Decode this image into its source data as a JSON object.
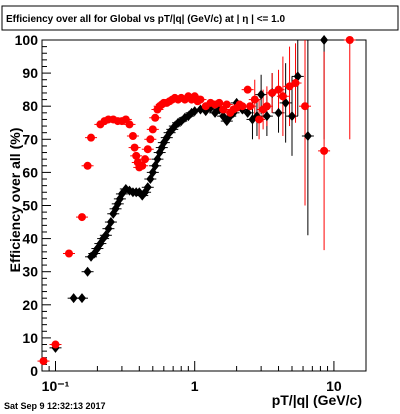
{
  "chart_data": {
    "type": "scatter",
    "title": "Efficiency over all for Global vs pT/|q| (GeV/c) at |  η | <= 1.0",
    "xlabel": "pT/|q| (GeV/c)",
    "ylabel": "Efficiency over all (%)",
    "x_scale": "log",
    "xlim": [
      0.08,
      17
    ],
    "ylim": [
      0,
      100
    ],
    "x_tick_labels": [
      "10⁻¹",
      "1",
      "10"
    ],
    "x_tick_values": [
      0.1,
      1,
      10
    ],
    "y_tick_values": [
      0,
      10,
      20,
      30,
      40,
      50,
      60,
      70,
      80,
      90,
      100
    ],
    "grid": false,
    "series": [
      {
        "color": "#000000",
        "marker": "diamond",
        "points": [
          {
            "x": 0.1,
            "y": 7
          },
          {
            "x": 0.135,
            "y": 22
          },
          {
            "x": 0.155,
            "y": 22
          },
          {
            "x": 0.17,
            "y": 30
          },
          {
            "x": 0.18,
            "y": 34.5
          },
          {
            "x": 0.19,
            "y": 35.5
          },
          {
            "x": 0.2,
            "y": 37
          },
          {
            "x": 0.21,
            "y": 38.5
          },
          {
            "x": 0.22,
            "y": 40
          },
          {
            "x": 0.23,
            "y": 41
          },
          {
            "x": 0.24,
            "y": 43
          },
          {
            "x": 0.25,
            "y": 45
          },
          {
            "x": 0.26,
            "y": 47.5
          },
          {
            "x": 0.27,
            "y": 49
          },
          {
            "x": 0.28,
            "y": 50.5
          },
          {
            "x": 0.29,
            "y": 52
          },
          {
            "x": 0.3,
            "y": 53.5
          },
          {
            "x": 0.32,
            "y": 55
          },
          {
            "x": 0.34,
            "y": 54.5
          },
          {
            "x": 0.36,
            "y": 54
          },
          {
            "x": 0.38,
            "y": 54
          },
          {
            "x": 0.4,
            "y": 54
          },
          {
            "x": 0.42,
            "y": 53
          },
          {
            "x": 0.44,
            "y": 54
          },
          {
            "x": 0.46,
            "y": 55.5
          },
          {
            "x": 0.48,
            "y": 58
          },
          {
            "x": 0.5,
            "y": 60
          },
          {
            "x": 0.52,
            "y": 62
          },
          {
            "x": 0.54,
            "y": 64
          },
          {
            "x": 0.56,
            "y": 66
          },
          {
            "x": 0.58,
            "y": 67.5
          },
          {
            "x": 0.6,
            "y": 69
          },
          {
            "x": 0.63,
            "y": 70.5
          },
          {
            "x": 0.66,
            "y": 72
          },
          {
            "x": 0.69,
            "y": 73
          },
          {
            "x": 0.72,
            "y": 74
          },
          {
            "x": 0.76,
            "y": 75
          },
          {
            "x": 0.8,
            "y": 75.5
          },
          {
            "x": 0.85,
            "y": 76.5
          },
          {
            "x": 0.9,
            "y": 77
          },
          {
            "x": 0.95,
            "y": 78
          },
          {
            "x": 1.0,
            "y": 78.5
          },
          {
            "x": 1.1,
            "y": 79
          },
          {
            "x": 1.2,
            "y": 78.5
          },
          {
            "x": 1.3,
            "y": 79.5
          },
          {
            "x": 1.4,
            "y": 78
          },
          {
            "x": 1.5,
            "y": 79
          },
          {
            "x": 1.6,
            "y": 77
          },
          {
            "x": 1.7,
            "y": 75.5
          },
          {
            "x": 1.8,
            "y": 77
          },
          {
            "x": 1.9,
            "y": 78
          },
          {
            "x": 2.0,
            "y": 81
          },
          {
            "x": 2.2,
            "y": 79
          },
          {
            "x": 2.4,
            "y": 78
          },
          {
            "x": 2.6,
            "y": 76
          },
          {
            "x": 2.8,
            "y": 77
          },
          {
            "x": 3.0,
            "y": 83.5
          },
          {
            "x": 3.3,
            "y": 77
          },
          {
            "x": 3.6,
            "y": 84
          },
          {
            "x": 4.0,
            "y": 78
          },
          {
            "x": 4.5,
            "y": 81
          },
          {
            "x": 5.0,
            "y": 77
          },
          {
            "x": 5.5,
            "y": 89
          },
          {
            "x": 6.5,
            "y": 71
          },
          {
            "x": 8.5,
            "y": 100
          }
        ]
      },
      {
        "color": "#ff0000",
        "marker": "circle",
        "points": [
          {
            "x": 0.082,
            "y": 3
          },
          {
            "x": 0.1,
            "y": 8
          },
          {
            "x": 0.125,
            "y": 35.5
          },
          {
            "x": 0.155,
            "y": 46.5
          },
          {
            "x": 0.17,
            "y": 62
          },
          {
            "x": 0.18,
            "y": 70.5
          },
          {
            "x": 0.21,
            "y": 74.5
          },
          {
            "x": 0.225,
            "y": 75.5
          },
          {
            "x": 0.24,
            "y": 76
          },
          {
            "x": 0.26,
            "y": 76
          },
          {
            "x": 0.28,
            "y": 75.5
          },
          {
            "x": 0.3,
            "y": 75.5
          },
          {
            "x": 0.32,
            "y": 76
          },
          {
            "x": 0.34,
            "y": 74.5
          },
          {
            "x": 0.36,
            "y": 71
          },
          {
            "x": 0.37,
            "y": 67.5
          },
          {
            "x": 0.38,
            "y": 65
          },
          {
            "x": 0.39,
            "y": 63
          },
          {
            "x": 0.4,
            "y": 61.5
          },
          {
            "x": 0.42,
            "y": 62
          },
          {
            "x": 0.44,
            "y": 64
          },
          {
            "x": 0.46,
            "y": 67
          },
          {
            "x": 0.48,
            "y": 70
          },
          {
            "x": 0.5,
            "y": 73
          },
          {
            "x": 0.52,
            "y": 76.5
          },
          {
            "x": 0.54,
            "y": 79
          },
          {
            "x": 0.56,
            "y": 80
          },
          {
            "x": 0.58,
            "y": 80.5
          },
          {
            "x": 0.6,
            "y": 81
          },
          {
            "x": 0.63,
            "y": 81
          },
          {
            "x": 0.66,
            "y": 81.5
          },
          {
            "x": 0.69,
            "y": 82
          },
          {
            "x": 0.72,
            "y": 82.5
          },
          {
            "x": 0.76,
            "y": 82
          },
          {
            "x": 0.8,
            "y": 82.5
          },
          {
            "x": 0.85,
            "y": 82
          },
          {
            "x": 0.9,
            "y": 83
          },
          {
            "x": 0.95,
            "y": 82
          },
          {
            "x": 1.0,
            "y": 83
          },
          {
            "x": 1.05,
            "y": 81.5
          },
          {
            "x": 1.1,
            "y": 82
          },
          {
            "x": 1.2,
            "y": 80
          },
          {
            "x": 1.3,
            "y": 81
          },
          {
            "x": 1.4,
            "y": 80.5
          },
          {
            "x": 1.5,
            "y": 81
          },
          {
            "x": 1.6,
            "y": 79
          },
          {
            "x": 1.7,
            "y": 80.5
          },
          {
            "x": 1.8,
            "y": 78
          },
          {
            "x": 1.9,
            "y": 79
          },
          {
            "x": 2.0,
            "y": 79.5
          },
          {
            "x": 2.1,
            "y": 80.5
          },
          {
            "x": 2.2,
            "y": 80
          },
          {
            "x": 2.4,
            "y": 85
          },
          {
            "x": 2.5,
            "y": 80
          },
          {
            "x": 2.7,
            "y": 82
          },
          {
            "x": 2.9,
            "y": 76
          },
          {
            "x": 3.1,
            "y": 79
          },
          {
            "x": 3.3,
            "y": 80
          },
          {
            "x": 3.6,
            "y": 84
          },
          {
            "x": 4.0,
            "y": 85
          },
          {
            "x": 4.3,
            "y": 83
          },
          {
            "x": 4.8,
            "y": 86
          },
          {
            "x": 5.3,
            "y": 87
          },
          {
            "x": 6.2,
            "y": 80
          },
          {
            "x": 8.5,
            "y": 66.5
          },
          {
            "x": 13,
            "y": 100
          }
        ]
      }
    ]
  },
  "footer": {
    "timestamp": "Sat Sep  9 12:32:13 2017"
  }
}
